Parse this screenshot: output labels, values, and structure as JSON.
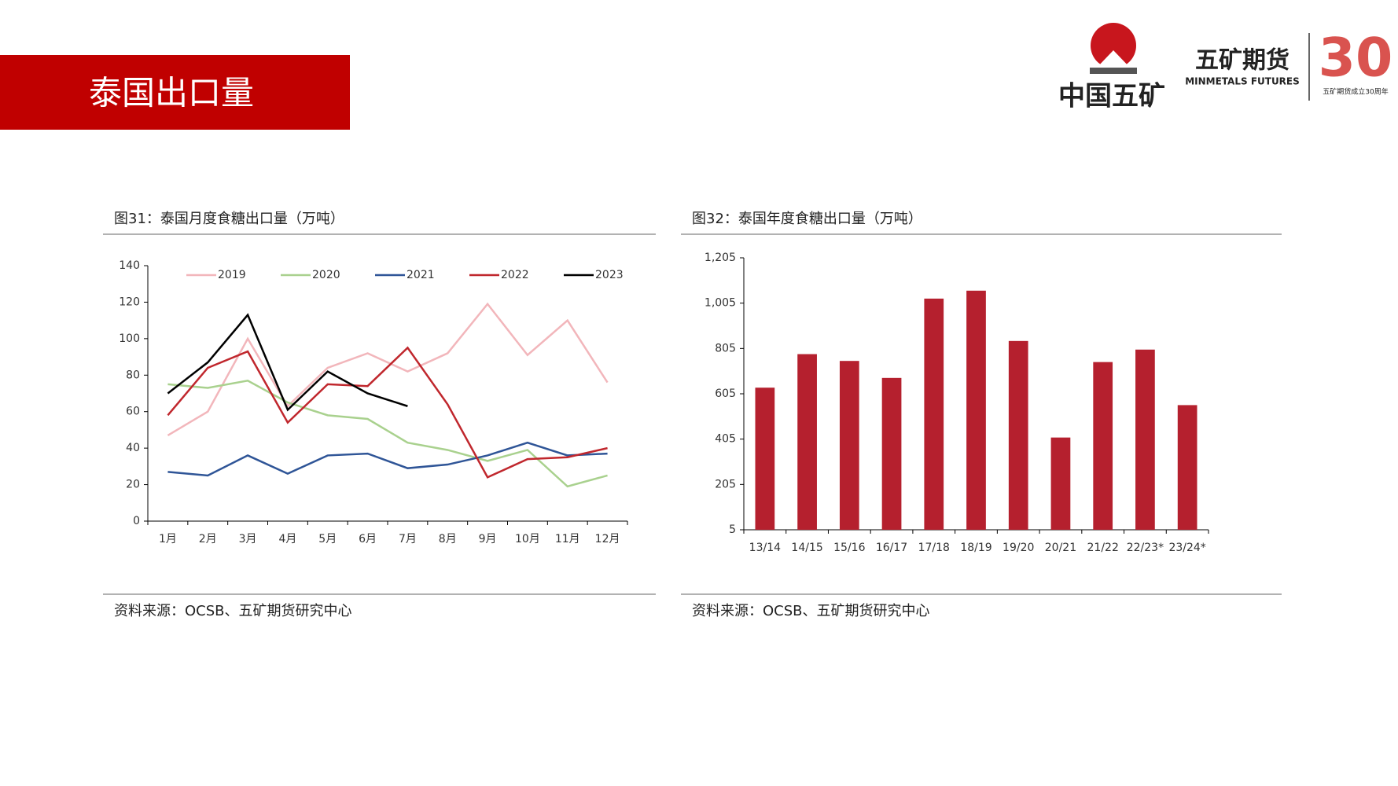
{
  "header": {
    "title": "泰国出口量",
    "logo_cn": "中国五矿",
    "logo_futures": "五矿期货",
    "logo_futures_en": "MINMETALS FUTURES",
    "anniv_number": "30",
    "anniv_text": "五矿期货成立30周年"
  },
  "chart_data": [
    {
      "type": "line",
      "title": "图31：泰国月度食糖出口量（万吨）",
      "source": "资料来源：OCSB、五矿期货研究中心",
      "categories": [
        "1月",
        "2月",
        "3月",
        "4月",
        "5月",
        "6月",
        "7月",
        "8月",
        "9月",
        "10月",
        "11月",
        "12月"
      ],
      "series": [
        {
          "name": "2019",
          "color": "#f2b6bb",
          "values": [
            47,
            60,
            100,
            63,
            84,
            92,
            82,
            92,
            119,
            91,
            110,
            76
          ]
        },
        {
          "name": "2020",
          "color": "#a9d18e",
          "values": [
            75,
            73,
            77,
            65,
            58,
            56,
            43,
            39,
            33,
            39,
            19,
            25
          ]
        },
        {
          "name": "2021",
          "color": "#2f5597",
          "values": [
            27,
            25,
            36,
            26,
            36,
            37,
            29,
            31,
            36,
            43,
            36,
            37
          ]
        },
        {
          "name": "2022",
          "color": "#c0272d",
          "values": [
            58,
            84,
            93,
            54,
            75,
            74,
            95,
            64,
            24,
            34,
            35,
            40
          ]
        },
        {
          "name": "2023",
          "color": "#000000",
          "values": [
            70,
            87,
            113,
            61,
            82,
            70,
            63,
            null,
            null,
            null,
            null,
            null
          ]
        }
      ],
      "ylim": [
        0,
        140
      ],
      "yticks": [
        0,
        20,
        40,
        60,
        80,
        100,
        120,
        140
      ],
      "legend": "top"
    },
    {
      "type": "bar",
      "title": "图32：泰国年度食糖出口量（万吨）",
      "source": "资料来源：OCSB、五矿期货研究中心",
      "categories": [
        "13/14",
        "14/15",
        "15/16",
        "16/17",
        "17/18",
        "18/19",
        "19/20",
        "20/21",
        "21/22",
        "22/23*",
        "23/24*"
      ],
      "values": [
        632,
        780,
        750,
        675,
        1025,
        1060,
        838,
        412,
        745,
        800,
        555
      ],
      "color": "#b5202e",
      "ylim": [
        5,
        1205
      ],
      "yticks": [
        5,
        205,
        405,
        605,
        805,
        {
          "value": 1005,
          "label": "1,005"
        },
        {
          "value": 1205,
          "label": "1,205"
        }
      ]
    }
  ]
}
